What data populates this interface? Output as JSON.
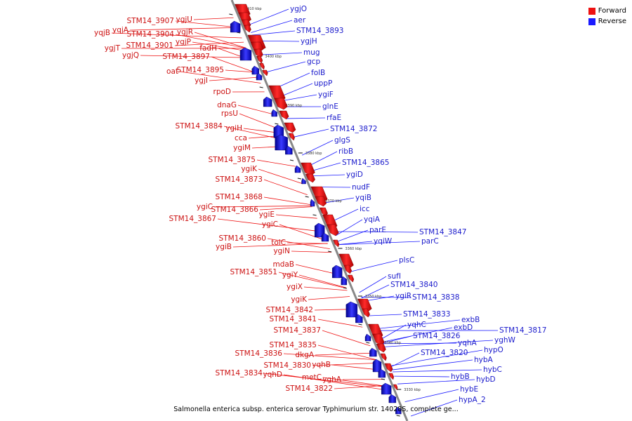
{
  "legend": {
    "forward": {
      "label": "Forward",
      "color": "#ee1111"
    },
    "reverse": {
      "label": "Reverse",
      "color": "#1a1aff"
    }
  },
  "caption": "Salmonella enterica subsp. enterica serovar Typhimurium str. 14028S, complete ge...",
  "axis_ticks": [
    "3410 kbp",
    "3400 kbp",
    "3390 kbp",
    "3380 kbp",
    "3370 kbp",
    "3360 kbp",
    "3350 kbp",
    "3340 kbp",
    "3330 kbp"
  ],
  "forward_genes": [
    "STM14_3907",
    "ygjU",
    "yqjA",
    "yqjB",
    "STM14_3904",
    "ygjR",
    "ygjP",
    "ygjT",
    "STM14_3901",
    "ygjQ",
    "fadH",
    "STM14_3897",
    "oat",
    "STM14_3895",
    "ygjI",
    "rpoD",
    "dnaG",
    "rpsU",
    "STM14_3884",
    "ygiH",
    "cca",
    "ygiM",
    "STM14_3875",
    "ygiK",
    "STM14_3873",
    "STM14_3868",
    "ygiC",
    "STM14_3866",
    "ygiE",
    "STM14_3867",
    "ygiC",
    "STM14_3860",
    "tolC",
    "ygiB",
    "ygiN",
    "mdaB",
    "STM14_3851",
    "ygiY",
    "ygiX",
    "ygiK",
    "STM14_3842",
    "STM14_3841",
    "STM14_3837",
    "STM14_3835",
    "STM14_3836",
    "dkgA",
    "STM14_3830",
    "yqhB",
    "STM14_3834",
    "yqhD",
    "metC",
    "yghA",
    "STM14_3822"
  ],
  "reverse_genes": [
    "ygjO",
    "aer",
    "STM14_3893",
    "ygjH",
    "mug",
    "gcp",
    "folB",
    "uppP",
    "ygiF",
    "glnE",
    "rfaE",
    "STM14_3872",
    "glgS",
    "ribB",
    "STM14_3865",
    "ygiD",
    "nudF",
    "yqiB",
    "icc",
    "yqiA",
    "parE",
    "yqiW",
    "STM14_3847",
    "parC",
    "plsC",
    "sufI",
    "STM14_3840",
    "ygiR",
    "STM14_3838",
    "STM14_3833",
    "exbB",
    "yqhC",
    "exbD",
    "STM14_3826",
    "yqhA",
    "STM14_3817",
    "yghW",
    "STM14_3820",
    "hypO",
    "hybA",
    "hybC",
    "hybB",
    "hybD",
    "hybE",
    "hypA_2"
  ]
}
